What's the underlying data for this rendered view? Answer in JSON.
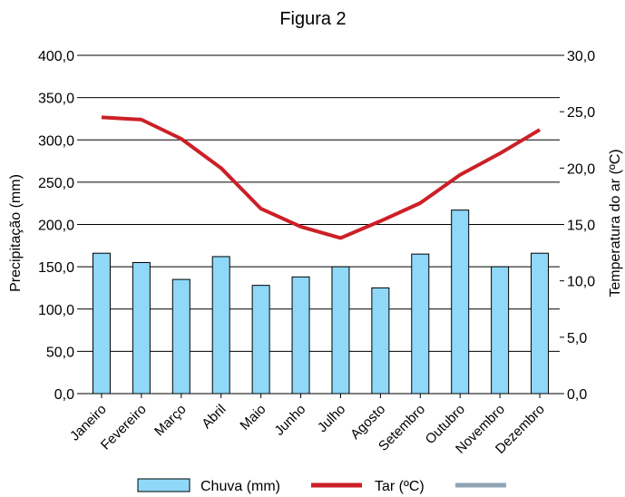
{
  "chart_data": {
    "type": "bar+line",
    "title": "Figura 2",
    "categories": [
      "Janeiro",
      "Fevereiro",
      "Março",
      "Abril",
      "Maio",
      "Junho",
      "Julho",
      "Agosto",
      "Setembro",
      "Outubro",
      "Novembro",
      "Dezembro"
    ],
    "series": [
      {
        "name": "Chuva (mm)",
        "type": "bar",
        "axis": "left",
        "color": "#8fd8f7",
        "values": [
          166,
          155,
          135,
          162,
          128,
          138,
          150,
          125,
          165,
          217,
          150,
          166
        ]
      },
      {
        "name": "Tar (ºC)",
        "type": "line",
        "axis": "right",
        "color": "#cc1f27",
        "values": [
          24.5,
          24.3,
          22.6,
          20.0,
          16.4,
          14.8,
          13.8,
          15.3,
          16.9,
          19.4,
          21.3,
          23.4
        ]
      }
    ],
    "legend_extra": {
      "name": "",
      "color": "#8fa5b5"
    },
    "ylabel_left": "Precipitação (mm)",
    "ylabel_right": "Temperatura do ar (ºC)",
    "ylim_left": [
      0,
      400
    ],
    "ylim_right": [
      0,
      30
    ],
    "yticks_left": [
      "0,0",
      "50,0",
      "100,0",
      "150,0",
      "200,0",
      "250,0",
      "300,0",
      "350,0",
      "400,0"
    ],
    "yticks_right": [
      "0,0",
      "5,0",
      "10,0",
      "15,0",
      "20,0",
      "25,0",
      "30,0"
    ],
    "grid": true,
    "legend_position": "bottom"
  }
}
